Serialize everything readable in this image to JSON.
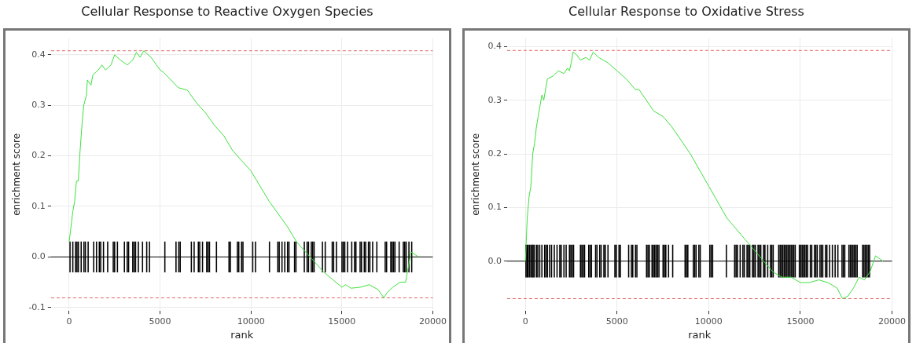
{
  "chart_data": [
    {
      "type": "line",
      "title": "Cellular Response to Reactive Oxygen Species",
      "xlabel": "rank",
      "ylabel": "enrichment score",
      "xlim": [
        -1000,
        20000
      ],
      "ylim": [
        -0.107,
        0.433
      ],
      "xticks": [
        0,
        5000,
        10000,
        15000,
        20000
      ],
      "yticks": [
        -0.1,
        {
          "value": 0,
          "label": "0.0"
        },
        0.1,
        0.2,
        0.3,
        0.4
      ],
      "grid": true,
      "legend": false,
      "ref_lines": [
        {
          "axis": "y",
          "value": 0.408,
          "color": "#e06666",
          "line_style": "dashed"
        },
        {
          "axis": "y",
          "value": -0.081,
          "color": "#e06666",
          "line_style": "dashed"
        },
        {
          "axis": "y",
          "value": 0,
          "color": "#000000",
          "line_style": "solid"
        }
      ],
      "series": [
        {
          "type": "bar",
          "color": "#000000",
          "x": [
            46,
            200,
            353,
            430,
            506,
            660,
            813,
            890,
            1043,
            1350,
            1503,
            1657,
            1733,
            1887,
            2117,
            2424,
            2500,
            2654,
            3037,
            3191,
            3267,
            3497,
            3574,
            3651,
            3804,
            4034,
            4264,
            4418,
            5262,
            5875,
            6029,
            6106,
            6719,
            6872,
            7103,
            7179,
            7333,
            7563,
            7639,
            7716,
            8100,
            8790,
            8866,
            9250,
            9327,
            9480,
            9557,
            10094,
            10247,
            11014,
            11474,
            11551,
            11704,
            11858,
            12011,
            12088,
            12395,
            12471,
            12931,
            13085,
            13162,
            13315,
            13392,
            13469,
            13929,
            14082,
            14466,
            14543,
            14696,
            15003,
            15079,
            15156,
            15309,
            15540,
            15693,
            15770,
            16000,
            16076,
            16230,
            16306,
            16460,
            16537,
            16690,
            16920,
            17380,
            17457,
            17687,
            17764,
            17841,
            17917,
            18147,
            18377,
            18454,
            18531,
            18685,
            18838
          ],
          "base": [
            -0.03,
            -0.03,
            -0.03,
            -0.03,
            -0.03,
            -0.03,
            -0.03,
            -0.03,
            -0.03,
            -0.03,
            -0.03,
            -0.03,
            -0.03,
            -0.03,
            -0.03,
            -0.03,
            -0.03,
            -0.03,
            -0.03,
            -0.03,
            -0.03,
            -0.03,
            -0.03,
            -0.03,
            -0.03,
            -0.03,
            -0.03,
            -0.03,
            -0.03,
            -0.03,
            -0.03,
            -0.03,
            -0.03,
            -0.03,
            -0.03,
            -0.03,
            -0.03,
            -0.03,
            -0.03,
            -0.03,
            -0.03,
            -0.03,
            -0.03,
            -0.03,
            -0.03,
            -0.03,
            -0.03,
            -0.03,
            -0.03,
            -0.03,
            -0.03,
            -0.03,
            -0.03,
            -0.03,
            -0.03,
            -0.03,
            -0.03,
            -0.03,
            -0.03,
            -0.03,
            -0.03,
            -0.03,
            -0.03,
            -0.03,
            -0.03,
            -0.03,
            -0.03,
            -0.03,
            -0.03,
            -0.03,
            -0.03,
            -0.03,
            -0.03,
            -0.03,
            -0.03,
            -0.03,
            -0.03,
            -0.03,
            -0.03,
            -0.03,
            -0.03,
            -0.03,
            -0.03,
            -0.03,
            -0.03,
            -0.03,
            -0.03,
            -0.03,
            -0.03,
            -0.03,
            -0.03,
            -0.03,
            -0.03,
            -0.03,
            -0.03,
            -0.03
          ],
          "values": [
            0.06,
            0.06,
            0.06,
            0.06,
            0.06,
            0.06,
            0.06,
            0.06,
            0.06,
            0.06,
            0.06,
            0.06,
            0.06,
            0.06,
            0.06,
            0.06,
            0.06,
            0.06,
            0.06,
            0.06,
            0.06,
            0.06,
            0.06,
            0.06,
            0.06,
            0.06,
            0.06,
            0.06,
            0.06,
            0.06,
            0.06,
            0.06,
            0.06,
            0.06,
            0.06,
            0.06,
            0.06,
            0.06,
            0.06,
            0.06,
            0.06,
            0.06,
            0.06,
            0.06,
            0.06,
            0.06,
            0.06,
            0.06,
            0.06,
            0.06,
            0.06,
            0.06,
            0.06,
            0.06,
            0.06,
            0.06,
            0.06,
            0.06,
            0.06,
            0.06,
            0.06,
            0.06,
            0.06,
            0.06,
            0.06,
            0.06,
            0.06,
            0.06,
            0.06,
            0.06,
            0.06,
            0.06,
            0.06,
            0.06,
            0.06,
            0.06,
            0.06,
            0.06,
            0.06,
            0.06,
            0.06,
            0.06,
            0.06,
            0.06,
            0.06,
            0.06,
            0.06,
            0.06,
            0.06,
            0.06,
            0.06,
            0.06,
            0.06,
            0.06,
            0.06,
            0.06
          ]
        },
        {
          "color": "#3ee03e",
          "marker": "none",
          "x": [
            0,
            200,
            300,
            400,
            500,
            600,
            700,
            800,
            950,
            1000,
            1200,
            1300,
            1600,
            1800,
            2000,
            2300,
            2500,
            2800,
            3200,
            3500,
            3700,
            3900,
            4100,
            4500,
            5000,
            5200,
            6000,
            6500,
            7000,
            7500,
            8000,
            8500,
            9000,
            9500,
            10000,
            11000,
            12000,
            12500,
            13000,
            13500,
            14000,
            14500,
            15000,
            15200,
            15500,
            16000,
            16500,
            17000,
            17300,
            17500,
            17800,
            18200,
            18500,
            18600,
            18700,
            18800,
            19200
          ],
          "values": [
            0.03,
            0.09,
            0.11,
            0.15,
            0.15,
            0.21,
            0.26,
            0.3,
            0.32,
            0.35,
            0.34,
            0.36,
            0.37,
            0.38,
            0.37,
            0.38,
            0.4,
            0.39,
            0.38,
            0.39,
            0.405,
            0.395,
            0.408,
            0.395,
            0.37,
            0.365,
            0.335,
            0.33,
            0.305,
            0.285,
            0.26,
            0.24,
            0.21,
            0.19,
            0.17,
            0.11,
            0.06,
            0.03,
            0.01,
            -0.01,
            -0.03,
            -0.045,
            -0.06,
            -0.055,
            -0.062,
            -0.06,
            -0.055,
            -0.065,
            -0.081,
            -0.07,
            -0.06,
            -0.05,
            -0.05,
            -0.03,
            -0.01,
            0.01,
            0
          ]
        }
      ]
    },
    {
      "type": "line",
      "title": "Cellular Response to Oxidative Stress",
      "xlabel": "rank",
      "ylabel": "enrichment score",
      "xlim": [
        -1000,
        20000
      ],
      "ylim": [
        -0.093,
        0.416
      ],
      "xticks": [
        0,
        5000,
        10000,
        15000,
        20000
      ],
      "yticks": [
        {
          "value": 0,
          "label": "0.0"
        },
        0.1,
        0.2,
        0.3,
        0.4
      ],
      "grid": true,
      "legend": false,
      "ref_lines": [
        {
          "axis": "y",
          "value": 0.393,
          "color": "#e06666",
          "line_style": "dashed"
        },
        {
          "axis": "y",
          "value": -0.07,
          "color": "#e06666",
          "line_style": "dashed"
        },
        {
          "axis": "y",
          "value": 0,
          "color": "#000000",
          "line_style": "solid"
        }
      ],
      "series": [
        {
          "type": "bar",
          "color": "#000000",
          "x": [
            30,
            90,
            150,
            225,
            300,
            376,
            421,
            481,
            601,
            676,
            781,
            901,
            1051,
            1127,
            1202,
            1322,
            1427,
            1577,
            1727,
            1877,
            1952,
            2103,
            2223,
            2403,
            2478,
            2553,
            2629,
            3004,
            3079,
            3154,
            3229,
            3455,
            3530,
            3605,
            3830,
            3905,
            4055,
            4131,
            4281,
            4356,
            4506,
            4882,
            4957,
            5107,
            5182,
            5633,
            5783,
            5858,
            6008,
            6083,
            6609,
            6684,
            6759,
            6909,
            6984,
            7059,
            7135,
            7210,
            7285,
            7510,
            7585,
            7660,
            7810,
            8036,
            8712,
            8787,
            8862,
            9162,
            9237,
            9312,
            9463,
            9538,
            10063,
            10139,
            10214,
            10965,
            11415,
            11490,
            11565,
            11716,
            11866,
            11941,
            12091,
            12166,
            12241,
            12392,
            12467,
            12542,
            12692,
            12767,
            12842,
            12992,
            13067,
            13218,
            13368,
            13443,
            13518,
            13818,
            13894,
            13969,
            14044,
            14119,
            14194,
            14269,
            14344,
            14419,
            14494,
            14569,
            14645,
            14720,
            14945,
            15020,
            15095,
            15170,
            15245,
            15320,
            15396,
            15546,
            15621,
            15771,
            15846,
            15921,
            16071,
            16146,
            16222,
            16372,
            16447,
            16597,
            16747,
            16897,
            17047,
            17273,
            17348,
            17423,
            17648,
            17723,
            17798,
            17874,
            17949,
            18024,
            18099,
            18399,
            18474,
            18549,
            18624,
            18700,
            18775
          ],
          "base": [
            -0.03,
            -0.03,
            -0.03,
            -0.03,
            -0.03,
            -0.03,
            -0.03,
            -0.03,
            -0.03,
            -0.03,
            -0.03,
            -0.03,
            -0.03,
            -0.03,
            -0.03,
            -0.03,
            -0.03,
            -0.03,
            -0.03,
            -0.03,
            -0.03,
            -0.03,
            -0.03,
            -0.03,
            -0.03,
            -0.03,
            -0.03,
            -0.03,
            -0.03,
            -0.03,
            -0.03,
            -0.03,
            -0.03,
            -0.03,
            -0.03,
            -0.03,
            -0.03,
            -0.03,
            -0.03,
            -0.03,
            -0.03,
            -0.03,
            -0.03,
            -0.03,
            -0.03,
            -0.03,
            -0.03,
            -0.03,
            -0.03,
            -0.03,
            -0.03,
            -0.03,
            -0.03,
            -0.03,
            -0.03,
            -0.03,
            -0.03,
            -0.03,
            -0.03,
            -0.03,
            -0.03,
            -0.03,
            -0.03,
            -0.03,
            -0.03,
            -0.03,
            -0.03,
            -0.03,
            -0.03,
            -0.03,
            -0.03,
            -0.03,
            -0.03,
            -0.03,
            -0.03,
            -0.03,
            -0.03,
            -0.03,
            -0.03,
            -0.03,
            -0.03,
            -0.03,
            -0.03,
            -0.03,
            -0.03,
            -0.03,
            -0.03,
            -0.03,
            -0.03,
            -0.03,
            -0.03,
            -0.03,
            -0.03,
            -0.03,
            -0.03,
            -0.03,
            -0.03,
            -0.03,
            -0.03,
            -0.03,
            -0.03,
            -0.03,
            -0.03,
            -0.03,
            -0.03,
            -0.03,
            -0.03,
            -0.03,
            -0.03,
            -0.03,
            -0.03,
            -0.03,
            -0.03,
            -0.03,
            -0.03,
            -0.03,
            -0.03,
            -0.03,
            -0.03,
            -0.03,
            -0.03,
            -0.03,
            -0.03,
            -0.03,
            -0.03,
            -0.03,
            -0.03,
            -0.03,
            -0.03,
            -0.03,
            -0.03,
            -0.03,
            -0.03,
            -0.03,
            -0.03,
            -0.03,
            -0.03,
            -0.03,
            -0.03,
            -0.03,
            -0.03,
            -0.03,
            -0.03,
            -0.03,
            -0.03,
            -0.03,
            -0.03
          ],
          "values": [
            0.06,
            0.06,
            0.06,
            0.06,
            0.06,
            0.06,
            0.06,
            0.06,
            0.06,
            0.06,
            0.06,
            0.06,
            0.06,
            0.06,
            0.06,
            0.06,
            0.06,
            0.06,
            0.06,
            0.06,
            0.06,
            0.06,
            0.06,
            0.06,
            0.06,
            0.06,
            0.06,
            0.06,
            0.06,
            0.06,
            0.06,
            0.06,
            0.06,
            0.06,
            0.06,
            0.06,
            0.06,
            0.06,
            0.06,
            0.06,
            0.06,
            0.06,
            0.06,
            0.06,
            0.06,
            0.06,
            0.06,
            0.06,
            0.06,
            0.06,
            0.06,
            0.06,
            0.06,
            0.06,
            0.06,
            0.06,
            0.06,
            0.06,
            0.06,
            0.06,
            0.06,
            0.06,
            0.06,
            0.06,
            0.06,
            0.06,
            0.06,
            0.06,
            0.06,
            0.06,
            0.06,
            0.06,
            0.06,
            0.06,
            0.06,
            0.06,
            0.06,
            0.06,
            0.06,
            0.06,
            0.06,
            0.06,
            0.06,
            0.06,
            0.06,
            0.06,
            0.06,
            0.06,
            0.06,
            0.06,
            0.06,
            0.06,
            0.06,
            0.06,
            0.06,
            0.06,
            0.06,
            0.06,
            0.06,
            0.06,
            0.06,
            0.06,
            0.06,
            0.06,
            0.06,
            0.06,
            0.06,
            0.06,
            0.06,
            0.06,
            0.06,
            0.06,
            0.06,
            0.06,
            0.06,
            0.06,
            0.06,
            0.06,
            0.06,
            0.06,
            0.06,
            0.06,
            0.06,
            0.06,
            0.06,
            0.06,
            0.06,
            0.06,
            0.06,
            0.06,
            0.06,
            0.06,
            0.06,
            0.06,
            0.06,
            0.06,
            0.06,
            0.06,
            0.06,
            0.06,
            0.06,
            0.06,
            0.06,
            0.06,
            0.06,
            0.06,
            0.06
          ]
        },
        {
          "color": "#3ee03e",
          "marker": "none",
          "x": [
            0,
            100,
            200,
            300,
            400,
            500,
            600,
            700,
            900,
            1000,
            1200,
            1500,
            1800,
            2100,
            2300,
            2400,
            2500,
            2600,
            2800,
            3000,
            3300,
            3500,
            3700,
            4000,
            4500,
            5000,
            5500,
            6000,
            6200,
            7000,
            7500,
            8000,
            9000,
            10000,
            11000,
            12000,
            12500,
            13000,
            13500,
            14000,
            14500,
            15000,
            15500,
            16000,
            16500,
            17000,
            17300,
            17600,
            17900,
            18200,
            18500,
            18800,
            19100,
            19500
          ],
          "values": [
            0,
            0.08,
            0.12,
            0.14,
            0.2,
            0.22,
            0.25,
            0.27,
            0.31,
            0.3,
            0.34,
            0.345,
            0.355,
            0.35,
            0.36,
            0.355,
            0.37,
            0.39,
            0.385,
            0.375,
            0.38,
            0.375,
            0.39,
            0.38,
            0.37,
            0.355,
            0.34,
            0.32,
            0.32,
            0.28,
            0.27,
            0.25,
            0.2,
            0.14,
            0.08,
            0.04,
            0.02,
            0,
            -0.02,
            -0.03,
            -0.03,
            -0.04,
            -0.04,
            -0.035,
            -0.04,
            -0.05,
            -0.07,
            -0.065,
            -0.05,
            -0.03,
            -0.035,
            -0.02,
            0.01,
            0
          ]
        }
      ]
    }
  ]
}
